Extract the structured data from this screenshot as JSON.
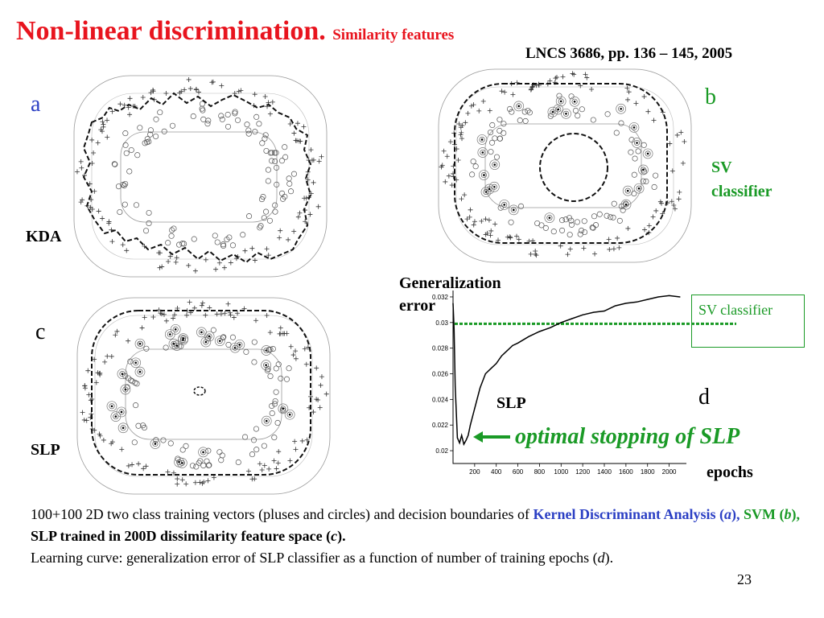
{
  "title": {
    "main": "Non-linear discrimination.",
    "sub": "Similarity features"
  },
  "reference": "LNCS 3686, pp. 136 – 145, 2005",
  "panels": {
    "a": {
      "letter": "a",
      "method": "KDA"
    },
    "b": {
      "letter": "b",
      "method_line1": "SV",
      "method_line2": "classifier"
    },
    "c": {
      "letter": "c",
      "method": "SLP"
    },
    "d": {
      "letter": "d"
    }
  },
  "learning_curve": {
    "ylabel_line1": "Generalization",
    "ylabel_line2": "error",
    "xlabel": "epochs",
    "curve_label": "SLP",
    "legend_box": "SV classifier",
    "annotation": "optimal stopping of SLP"
  },
  "caption": {
    "p1": "100+100 2D two class training vectors (pluses and circles) and decision boundaries of ",
    "kda": "Kernel Discriminant Analysis (",
    "kda_a": "a",
    "kda_close": "),",
    "svm": " SVM (",
    "svm_b": "b",
    "svm_close": "),",
    "slp": " SLP trained in 200D dissimilarity feature space (",
    "slp_c": "c",
    "slp_close": ").",
    "line3": "Learning curve: generalization error of SLP classifier as a function of number of training epochs (",
    "line3_d": "d",
    "line3_close": ")."
  },
  "page_number": "23",
  "colors": {
    "title": "#e8141e",
    "blue": "#2b3fc4",
    "green": "#1a9a26"
  },
  "chart_data": {
    "type": "line",
    "xlabel": "epochs",
    "ylabel": "Generalization error",
    "xlim": [
      0,
      2100
    ],
    "ylim": [
      0.019,
      0.0325
    ],
    "x_ticks": [
      200,
      400,
      600,
      800,
      1000,
      1200,
      1400,
      1600,
      1800,
      2000
    ],
    "y_ticks": [
      0.02,
      0.022,
      0.024,
      0.026,
      0.028,
      0.03,
      0.032
    ],
    "y_tick_labels": [
      "0.02",
      "0.022",
      "0.024",
      "0.026",
      "0.028",
      "0.03",
      "0.032"
    ],
    "series": [
      {
        "name": "SLP",
        "x": [
          0,
          10,
          20,
          40,
          60,
          80,
          100,
          120,
          140,
          160,
          200,
          250,
          300,
          350,
          400,
          450,
          500,
          550,
          600,
          700,
          800,
          900,
          1000,
          1100,
          1200,
          1300,
          1400,
          1500,
          1600,
          1700,
          1800,
          1900,
          2000,
          2100
        ],
        "y": [
          0.0315,
          0.0295,
          0.025,
          0.021,
          0.0206,
          0.0212,
          0.0205,
          0.0208,
          0.0212,
          0.022,
          0.0233,
          0.0249,
          0.026,
          0.0264,
          0.0268,
          0.0274,
          0.0278,
          0.0282,
          0.0284,
          0.0289,
          0.0293,
          0.0296,
          0.03,
          0.0303,
          0.0306,
          0.0308,
          0.0309,
          0.0313,
          0.0315,
          0.0316,
          0.0318,
          0.032,
          0.0321,
          0.032
        ]
      }
    ],
    "reference_line": {
      "name": "SV classifier",
      "y": 0.0299
    }
  }
}
